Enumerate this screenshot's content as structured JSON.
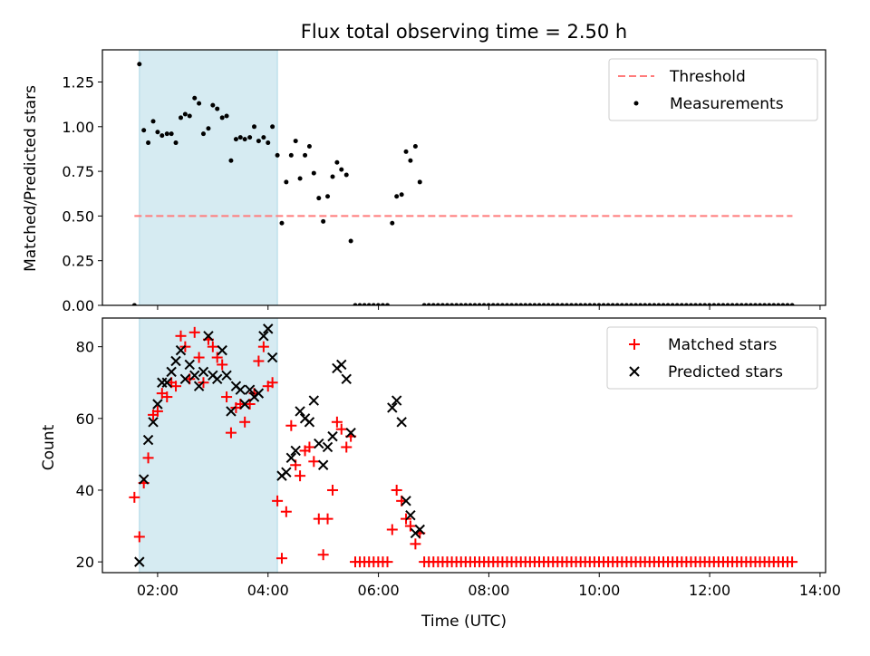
{
  "chart_data": [
    {
      "type": "scatter",
      "title": "Flux total observing time = 2.50 h",
      "xlabel": "",
      "ylabel": "Matched/Predicted stars",
      "xlim": [
        1.0,
        14.1
      ],
      "ylim": [
        0.0,
        1.43
      ],
      "xticks": [
        2,
        4,
        6,
        8,
        10,
        12,
        14
      ],
      "yticks": [
        0.0,
        0.25,
        0.5,
        0.75,
        1.0,
        1.25
      ],
      "ytick_labels": [
        "0.00",
        "0.25",
        "0.50",
        "0.75",
        "1.00",
        "1.25"
      ],
      "shaded_span": [
        1.67,
        4.17
      ],
      "threshold": {
        "name": "Threshold",
        "y": 0.5,
        "x": [
          1.58,
          13.5
        ],
        "color": "#ff7b7b"
      },
      "legend": {
        "position": "top-right",
        "entries": [
          "Threshold",
          "Measurements"
        ]
      },
      "series": [
        {
          "name": "Measurements",
          "color": "#000000",
          "marker": "dot",
          "x": [
            1.58,
            1.67,
            1.75,
            1.83,
            1.92,
            2.0,
            2.08,
            2.17,
            2.25,
            2.33,
            2.42,
            2.5,
            2.58,
            2.67,
            2.75,
            2.83,
            2.92,
            3.0,
            3.08,
            3.17,
            3.25,
            3.33,
            3.42,
            3.5,
            3.58,
            3.67,
            3.75,
            3.83,
            3.92,
            4.0,
            4.08,
            4.17,
            4.25,
            4.33,
            4.42,
            4.5,
            4.58,
            4.67,
            4.75,
            4.83,
            4.92,
            5.0,
            5.08,
            5.17,
            5.25,
            5.33,
            5.42,
            5.5,
            6.25,
            6.33,
            6.42,
            6.5,
            6.58,
            6.67,
            6.75
          ],
          "y": [
            0.0,
            1.35,
            0.98,
            0.91,
            1.03,
            0.97,
            0.95,
            0.96,
            0.96,
            0.91,
            1.05,
            1.07,
            1.06,
            1.16,
            1.13,
            0.96,
            0.99,
            1.12,
            1.1,
            1.05,
            1.06,
            0.81,
            0.93,
            0.94,
            0.93,
            0.94,
            1.0,
            0.92,
            0.94,
            0.91,
            1.0,
            0.84,
            0.46,
            0.69,
            0.84,
            0.92,
            0.71,
            0.84,
            0.89,
            0.74,
            0.6,
            0.47,
            0.61,
            0.72,
            0.8,
            0.76,
            0.73,
            0.36,
            0.46,
            0.61,
            0.62,
            0.86,
            0.81,
            0.89,
            0.69
          ]
        },
        {
          "name": "",
          "color": "#000000",
          "marker": "dot",
          "x_start": 5.58,
          "x_end": 6.17,
          "x_step": 0.0833,
          "y": 0.0
        },
        {
          "name": "",
          "color": "#000000",
          "marker": "dot",
          "x_start": 6.83,
          "x_end": 13.5,
          "x_step": 0.0833,
          "y": 0.0
        }
      ]
    },
    {
      "type": "scatter",
      "title": "",
      "xlabel": "Time (UTC)",
      "ylabel": "Count",
      "xlim": [
        1.0,
        14.1
      ],
      "ylim": [
        17,
        88
      ],
      "xticks": [
        2,
        4,
        6,
        8,
        10,
        12,
        14
      ],
      "xtick_labels": [
        "02:00",
        "04:00",
        "06:00",
        "08:00",
        "10:00",
        "12:00",
        "14:00"
      ],
      "yticks": [
        20,
        40,
        60,
        80
      ],
      "ytick_labels": [
        "20",
        "40",
        "60",
        "80"
      ],
      "shaded_span": [
        1.67,
        4.17
      ],
      "legend": {
        "position": "top-right",
        "entries": [
          "Matched stars",
          "Predicted stars"
        ]
      },
      "series": [
        {
          "name": "Matched stars",
          "color": "#ff0000",
          "marker": "plus",
          "x": [
            1.58,
            1.67,
            1.75,
            1.83,
            1.92,
            2.0,
            2.08,
            2.17,
            2.25,
            2.33,
            2.42,
            2.5,
            2.58,
            2.67,
            2.75,
            2.83,
            2.92,
            3.0,
            3.08,
            3.17,
            3.25,
            3.33,
            3.42,
            3.5,
            3.58,
            3.67,
            3.75,
            3.83,
            3.92,
            4.0,
            4.08,
            4.17,
            4.25,
            4.33,
            4.42,
            4.5,
            4.58,
            4.67,
            4.75,
            4.83,
            4.92,
            5.0,
            5.08,
            5.17,
            5.25,
            5.33,
            5.42,
            5.5,
            6.25,
            6.33,
            6.42,
            6.5,
            6.58,
            6.67,
            6.75
          ],
          "y": [
            38,
            27,
            42,
            49,
            61,
            62,
            67,
            66,
            70,
            69,
            83,
            80,
            71,
            84,
            77,
            70,
            82,
            80,
            77,
            75,
            66,
            56,
            63,
            64,
            59,
            64,
            67,
            76,
            80,
            69,
            70,
            37,
            21,
            34,
            58,
            47,
            44,
            51,
            52,
            48,
            32,
            22,
            32,
            40,
            59,
            57,
            52,
            55,
            29,
            40,
            37,
            32,
            30,
            25,
            28
          ]
        },
        {
          "name": "",
          "color": "#ff0000",
          "marker": "plus",
          "x_start": 5.58,
          "x_end": 6.17,
          "x_step": 0.0833,
          "y": 20
        },
        {
          "name": "",
          "color": "#ff0000",
          "marker": "plus",
          "x_start": 6.83,
          "x_end": 13.5,
          "x_step": 0.0833,
          "y": 20
        },
        {
          "name": "Predicted stars",
          "color": "#000000",
          "marker": "x",
          "x": [
            1.67,
            1.75,
            1.83,
            1.92,
            2.0,
            2.08,
            2.17,
            2.25,
            2.33,
            2.42,
            2.5,
            2.58,
            2.67,
            2.75,
            2.83,
            2.92,
            3.0,
            3.08,
            3.17,
            3.25,
            3.33,
            3.42,
            3.5,
            3.58,
            3.67,
            3.75,
            3.83,
            3.92,
            4.0,
            4.08,
            4.25,
            4.33,
            4.42,
            4.5,
            4.58,
            4.67,
            4.75,
            4.83,
            4.92,
            5.0,
            5.08,
            5.17,
            5.25,
            5.33,
            5.42,
            5.5,
            6.25,
            6.33,
            6.42,
            6.5,
            6.58,
            6.67,
            6.75
          ],
          "y": [
            20,
            43,
            54,
            59,
            64,
            70,
            70,
            73,
            76,
            79,
            71,
            75,
            72,
            69,
            73,
            83,
            72,
            71,
            79,
            72,
            62,
            69,
            68,
            64,
            68,
            66,
            67,
            83,
            85,
            77,
            44,
            45,
            49,
            51,
            62,
            60,
            59,
            65,
            53,
            47,
            52,
            55,
            74,
            75,
            71,
            56,
            63,
            65,
            59,
            37,
            33,
            28,
            29
          ]
        }
      ]
    }
  ]
}
